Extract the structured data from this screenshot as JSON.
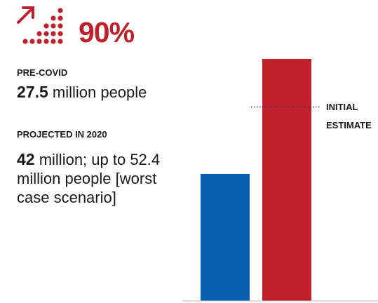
{
  "headline": {
    "percent": "90%"
  },
  "pre_covid": {
    "label": "PRE-COVID",
    "value": "27.5",
    "text": " million people"
  },
  "projected": {
    "label": "PROJECTED IN 2020",
    "value": "42",
    "text": " million; up to 52.4 million people [worst case scenario]"
  },
  "colors": {
    "red": "#c0202c",
    "blue": "#0a5fb0",
    "ink": "#1a1a1a"
  },
  "chart_data": {
    "type": "bar",
    "categories": [
      "",
      ""
    ],
    "values": [
      27.5,
      52.4
    ],
    "colors": [
      "#0a5fb0",
      "#c0202c"
    ],
    "reference_line": {
      "value": 42,
      "label": [
        "INITIAL",
        "ESTIMATE"
      ]
    },
    "ylim": [
      0,
      52.4
    ],
    "grid": false
  }
}
